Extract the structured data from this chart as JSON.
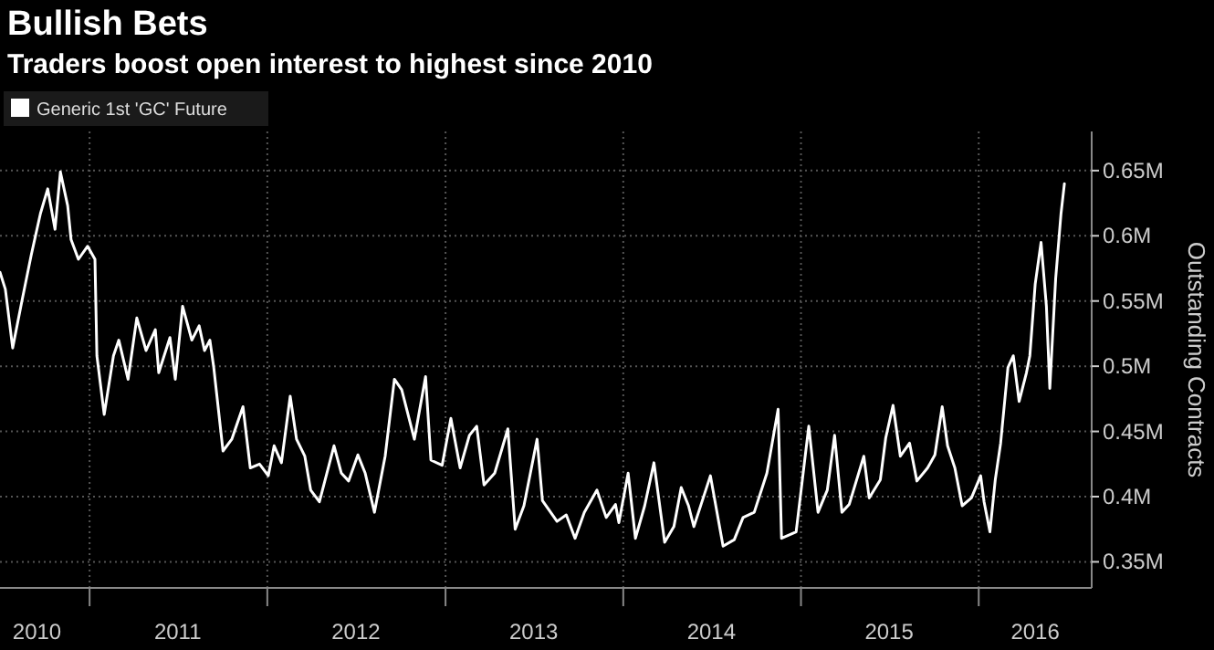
{
  "chart_data": {
    "type": "line",
    "title": "Bullish Bets",
    "subtitle": "Traders boost open interest to highest since 2010",
    "y2label": "Outstanding Contracts",
    "legend": "top left",
    "grid": true,
    "xlim": [
      "2010-07-01",
      "2016-08-20"
    ],
    "xticks": [
      {
        "value": "2010-09-15",
        "label": "2010"
      },
      {
        "value": "2011-01-01",
        "label": null
      },
      {
        "value": "2011-07-01",
        "label": "2011"
      },
      {
        "value": "2012-01-01",
        "label": null
      },
      {
        "value": "2012-07-01",
        "label": "2012"
      },
      {
        "value": "2013-01-01",
        "label": null
      },
      {
        "value": "2013-07-01",
        "label": "2013"
      },
      {
        "value": "2014-01-01",
        "label": null
      },
      {
        "value": "2014-07-01",
        "label": "2014"
      },
      {
        "value": "2015-01-01",
        "label": null
      },
      {
        "value": "2015-07-01",
        "label": "2015"
      },
      {
        "value": "2016-01-01",
        "label": null
      },
      {
        "value": "2016-04-26",
        "label": "2016"
      }
    ],
    "y2lim": [
      0.33,
      0.68
    ],
    "y2ticks": [
      {
        "value": 0.35,
        "label": "0.35M"
      },
      {
        "value": 0.4,
        "label": "0.4M"
      },
      {
        "value": 0.45,
        "label": "0.45M"
      },
      {
        "value": 0.5,
        "label": "0.5M"
      },
      {
        "value": 0.55,
        "label": "0.55M"
      },
      {
        "value": 0.6,
        "label": "0.6M"
      },
      {
        "value": 0.65,
        "label": "0.65M"
      }
    ],
    "series": [
      {
        "name": "Generic 1st 'GC' Future",
        "color": "#ffffff",
        "axis": "y2",
        "x": [
          "2010-07-01",
          "2010-07-12",
          "2010-07-27",
          "2010-08-15",
          "2010-09-03",
          "2010-09-22",
          "2010-10-07",
          "2010-10-22",
          "2010-11-02",
          "2010-11-17",
          "2010-11-24",
          "2010-12-09",
          "2010-12-28",
          "2011-01-12",
          "2011-01-16",
          "2011-01-31",
          "2011-02-19",
          "2011-03-02",
          "2011-03-21",
          "2011-04-08",
          "2011-04-27",
          "2011-05-16",
          "2011-05-23",
          "2011-06-15",
          "2011-06-26",
          "2011-07-11",
          "2011-07-30",
          "2011-08-14",
          "2011-08-25",
          "2011-09-05",
          "2011-09-13",
          "2011-10-02",
          "2011-10-20",
          "2011-11-12",
          "2011-11-27",
          "2011-12-16",
          "2012-01-03",
          "2012-01-15",
          "2012-01-30",
          "2012-02-17",
          "2012-03-01",
          "2012-03-18",
          "2012-03-30",
          "2012-04-17",
          "2012-05-17",
          "2012-06-01",
          "2012-06-16",
          "2012-07-05",
          "2012-07-20",
          "2012-08-08",
          "2012-08-30",
          "2012-09-18",
          "2012-10-03",
          "2012-10-29",
          "2012-11-21",
          "2012-12-02",
          "2012-12-25",
          "2013-01-12",
          "2013-01-31",
          "2013-02-19",
          "2013-03-06",
          "2013-03-21",
          "2013-04-12",
          "2013-05-09",
          "2013-05-24",
          "2013-06-11",
          "2013-07-08",
          "2013-07-19",
          "2013-08-18",
          "2013-09-06",
          "2013-09-24",
          "2013-10-13",
          "2013-11-08",
          "2013-11-27",
          "2013-12-16",
          "2013-12-23",
          "2014-01-11",
          "2014-01-26",
          "2014-02-14",
          "2014-03-05",
          "2014-03-27",
          "2014-04-15",
          "2014-04-30",
          "2014-05-15",
          "2014-05-26",
          "2014-06-29",
          "2014-07-25",
          "2014-08-17",
          "2014-09-04",
          "2014-09-27",
          "2014-10-23",
          "2014-11-15",
          "2014-11-22",
          "2014-12-22",
          "2015-01-17",
          "2015-02-05",
          "2015-02-24",
          "2015-03-11",
          "2015-03-26",
          "2015-04-10",
          "2015-05-10",
          "2015-05-21",
          "2015-06-13",
          "2015-06-24",
          "2015-07-09",
          "2015-07-24",
          "2015-08-12",
          "2015-08-27",
          "2015-09-18",
          "2015-10-03",
          "2015-10-18",
          "2015-10-29",
          "2015-11-13",
          "2015-11-28",
          "2015-12-17",
          "2016-01-05",
          "2016-01-12",
          "2016-01-24",
          "2016-02-04",
          "2016-02-15",
          "2016-03-01",
          "2016-03-12",
          "2016-03-24",
          "2016-04-08",
          "2016-04-15",
          "2016-04-26",
          "2016-05-08",
          "2016-05-19",
          "2016-05-26",
          "2016-06-07",
          "2016-06-18",
          "2016-06-25"
        ],
        "values": [
          0.572,
          0.559,
          0.514,
          0.55,
          0.585,
          0.617,
          0.636,
          0.605,
          0.649,
          0.623,
          0.597,
          0.582,
          0.592,
          0.582,
          0.508,
          0.463,
          0.508,
          0.52,
          0.49,
          0.537,
          0.512,
          0.528,
          0.495,
          0.522,
          0.49,
          0.546,
          0.52,
          0.531,
          0.512,
          0.52,
          0.499,
          0.435,
          0.444,
          0.469,
          0.422,
          0.425,
          0.416,
          0.439,
          0.426,
          0.477,
          0.444,
          0.431,
          0.405,
          0.396,
          0.439,
          0.418,
          0.412,
          0.432,
          0.418,
          0.388,
          0.431,
          0.49,
          0.482,
          0.444,
          0.492,
          0.428,
          0.424,
          0.46,
          0.422,
          0.447,
          0.454,
          0.409,
          0.418,
          0.452,
          0.375,
          0.393,
          0.444,
          0.397,
          0.381,
          0.386,
          0.368,
          0.388,
          0.405,
          0.384,
          0.394,
          0.38,
          0.418,
          0.368,
          0.393,
          0.426,
          0.365,
          0.377,
          0.407,
          0.393,
          0.377,
          0.416,
          0.362,
          0.367,
          0.384,
          0.388,
          0.418,
          0.467,
          0.368,
          0.373,
          0.454,
          0.388,
          0.405,
          0.447,
          0.388,
          0.394,
          0.431,
          0.399,
          0.413,
          0.445,
          0.47,
          0.431,
          0.441,
          0.412,
          0.422,
          0.432,
          0.469,
          0.439,
          0.422,
          0.393,
          0.399,
          0.416,
          0.396,
          0.373,
          0.413,
          0.441,
          0.499,
          0.508,
          0.473,
          0.495,
          0.508,
          0.563,
          0.595,
          0.546,
          0.483,
          0.567,
          0.617,
          0.64
        ]
      }
    ]
  }
}
